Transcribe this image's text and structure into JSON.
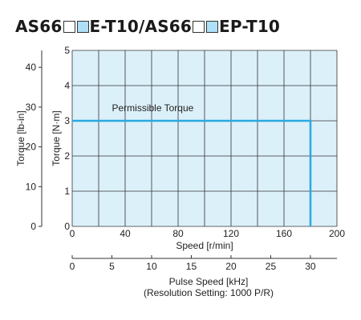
{
  "title": {
    "part1": "AS66",
    "part2": "E-T10/AS66",
    "part3": "EP-T10",
    "box_blank_color": "#ffffff",
    "box_blue_color": "#aee0f7"
  },
  "chart_data": {
    "type": "line",
    "plot_bg": "#dcf0fa",
    "line_color": "#29a9e0",
    "grid": true,
    "xlabel": "Speed [r/min]",
    "xlim": [
      0,
      200
    ],
    "xticks": [
      "0",
      "40",
      "80",
      "120",
      "160",
      "200"
    ],
    "ylabel_left": "Torque [N·m]",
    "ylim_left": [
      0,
      5
    ],
    "yticks_left": [
      "0",
      "1",
      "2",
      "3",
      "4",
      "5"
    ],
    "ylabel_outer": "Torque [lb-in]",
    "yticks_outer": [
      "0",
      "10",
      "20",
      "30",
      "40"
    ],
    "yticks_outer_values": [
      0,
      10,
      20,
      30,
      40
    ],
    "lbin_per_nm": 8.85,
    "x2label": "Pulse Speed [kHz]",
    "x2label_sub": "(Resolution Setting: 1000 P/R)",
    "x2ticks": [
      "0",
      "5",
      "10",
      "15",
      "20",
      "25",
      "30"
    ],
    "x2_values": [
      0,
      5,
      10,
      15,
      20,
      25,
      30
    ],
    "khz_per_rpm": 0.1667,
    "series": [
      {
        "name": "Permissible Torque",
        "x": [
          0,
          180,
          180
        ],
        "y": [
          3,
          3,
          0
        ]
      }
    ]
  }
}
